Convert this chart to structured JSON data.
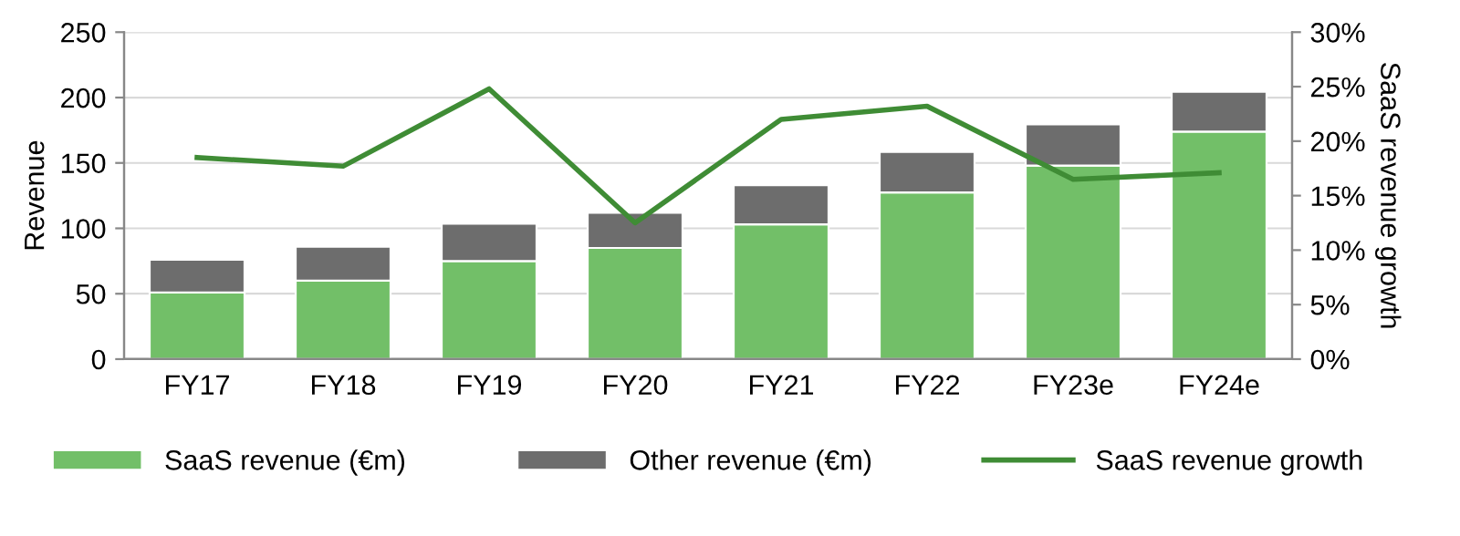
{
  "chart_data": {
    "type": "bar",
    "stacked": true,
    "categories": [
      "FY17",
      "FY18",
      "FY19",
      "FY20",
      "FY21",
      "FY22",
      "FY23e",
      "FY24e"
    ],
    "ylabel": "Revenue",
    "y2label": "SaaS revenue growth",
    "series": [
      {
        "name": "SaaS revenue (€m)",
        "color": "#72bf68",
        "values": [
          51,
          60,
          75,
          85,
          103,
          127.5,
          148,
          174
        ]
      },
      {
        "name": "Other revenue (€m)",
        "color": "#6d6d6d",
        "values": [
          25,
          26,
          28.5,
          27,
          30,
          31,
          31.5,
          30.5
        ]
      },
      {
        "name": "SaaS revenue growth",
        "type": "line",
        "axis": "y2",
        "color": "#3f8c35",
        "values": [
          18.5,
          17.7,
          24.8,
          12.5,
          22.0,
          23.2,
          16.5,
          17.1
        ]
      }
    ],
    "ylim": [
      0,
      250
    ],
    "yticks": [
      0,
      50,
      100,
      150,
      200,
      250
    ],
    "y2lim": [
      0,
      30
    ],
    "y2ticks": [
      {
        "value": 0,
        "label": "0%"
      },
      {
        "value": 5,
        "label": "5%"
      },
      {
        "value": 10,
        "label": "10%"
      },
      {
        "value": 15,
        "label": "15%"
      },
      {
        "value": 20,
        "label": "20%"
      },
      {
        "value": 25,
        "label": "25%"
      },
      {
        "value": 30,
        "label": "30%"
      }
    ],
    "grid": "y",
    "legend": "bottom",
    "marker": "none"
  }
}
